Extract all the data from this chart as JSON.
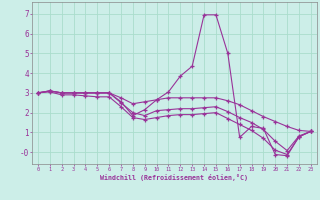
{
  "xlabel": "Windchill (Refroidissement éolien,°C)",
  "background_color": "#cceee8",
  "grid_color": "#aaddcc",
  "line_color": "#993399",
  "xlim": [
    -0.5,
    23.5
  ],
  "ylim": [
    -0.6,
    7.6
  ],
  "xticks": [
    0,
    1,
    2,
    3,
    4,
    5,
    6,
    7,
    8,
    9,
    10,
    11,
    12,
    13,
    14,
    15,
    16,
    17,
    18,
    19,
    20,
    21,
    22,
    23
  ],
  "yticks": [
    0,
    1,
    2,
    3,
    4,
    5,
    6,
    7
  ],
  "ytick_labels": [
    "-0",
    "1",
    "2",
    "3",
    "4",
    "5",
    "6",
    "7"
  ],
  "lines": [
    {
      "x": [
        0,
        1,
        2,
        3,
        4,
        5,
        6,
        7,
        8,
        9,
        10,
        11,
        12,
        13,
        14,
        15,
        16,
        17,
        18,
        19,
        20,
        21,
        22,
        23
      ],
      "y": [
        3.0,
        3.1,
        3.0,
        3.0,
        3.0,
        3.0,
        3.0,
        2.55,
        1.85,
        2.15,
        2.65,
        3.05,
        3.85,
        4.35,
        6.95,
        6.95,
        5.0,
        0.75,
        1.3,
        1.2,
        -0.12,
        -0.18,
        0.78,
        1.05
      ]
    },
    {
      "x": [
        0,
        1,
        2,
        3,
        4,
        5,
        6,
        7,
        8,
        9,
        10,
        11,
        12,
        13,
        14,
        15,
        16,
        17,
        18,
        19,
        20,
        21,
        22,
        23
      ],
      "y": [
        3.0,
        3.1,
        3.0,
        3.0,
        3.0,
        3.0,
        3.0,
        2.75,
        2.45,
        2.55,
        2.65,
        2.75,
        2.75,
        2.75,
        2.75,
        2.75,
        2.6,
        2.4,
        2.1,
        1.8,
        1.55,
        1.3,
        1.1,
        1.05
      ]
    },
    {
      "x": [
        0,
        1,
        2,
        3,
        4,
        5,
        6,
        7,
        8,
        9,
        10,
        11,
        12,
        13,
        14,
        15,
        16,
        17,
        18,
        19,
        20,
        21,
        22,
        23
      ],
      "y": [
        3.0,
        3.1,
        3.0,
        3.0,
        3.0,
        3.0,
        3.0,
        2.5,
        2.0,
        1.85,
        2.1,
        2.15,
        2.2,
        2.2,
        2.25,
        2.3,
        2.05,
        1.75,
        1.5,
        1.15,
        0.55,
        0.08,
        0.82,
        1.05
      ]
    },
    {
      "x": [
        0,
        1,
        2,
        3,
        4,
        5,
        6,
        7,
        8,
        9,
        10,
        11,
        12,
        13,
        14,
        15,
        16,
        17,
        18,
        19,
        20,
        21,
        22,
        23
      ],
      "y": [
        3.0,
        3.05,
        2.9,
        2.9,
        2.85,
        2.8,
        2.8,
        2.3,
        1.75,
        1.65,
        1.75,
        1.85,
        1.9,
        1.9,
        1.95,
        2.0,
        1.7,
        1.4,
        1.1,
        0.7,
        0.1,
        -0.12,
        0.78,
        1.05
      ]
    }
  ]
}
